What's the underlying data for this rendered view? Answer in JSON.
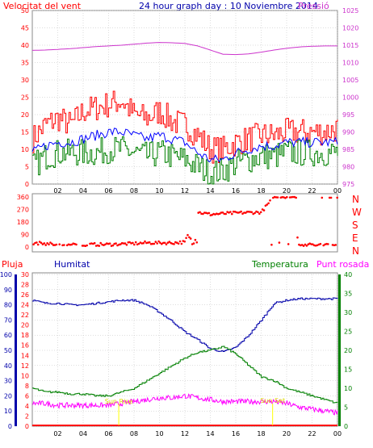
{
  "header": {
    "left_title": "Velocitat del vent",
    "center_title": "24 hour graph day : 10 Noviembre 2014",
    "right_title": "Pressió"
  },
  "colors": {
    "wind_gust": "#ff0000",
    "wind_avg_line": "#0000ff",
    "wind_green": "#008000",
    "pressure": "#cc33cc",
    "direction": "#ff0000",
    "rain": "#ff0000",
    "humidity": "#0000aa",
    "temperature": "#008000",
    "dew_point": "#ff00ff",
    "frame": "#888888",
    "grid": "#bbbbbb",
    "highlight": "#ffff00"
  },
  "compass": [
    "N",
    "W",
    "S",
    "E",
    "N"
  ],
  "bottom_labels": {
    "rain": "Pluja",
    "humidity": "Humitat",
    "temperature": "Temperatura",
    "dew_point": "Punt rosada",
    "sun_rise": "Sun Rise",
    "sun_set": "Sun Set"
  },
  "x_ticks": [
    "02",
    "04",
    "06",
    "08",
    "10",
    "12",
    "14",
    "16",
    "18",
    "20",
    "22",
    "00"
  ],
  "chart_data": [
    {
      "type": "line",
      "title": "24 hour graph day : 10 Noviembre 2014",
      "left_axis_label": "Velocitat del vent",
      "right_axis_label": "Pressió",
      "left_ylim": [
        0,
        50
      ],
      "left_ticks": [
        0,
        5,
        10,
        15,
        20,
        25,
        30,
        35,
        40,
        45,
        50
      ],
      "right_ylim": [
        975,
        1025
      ],
      "right_ticks": [
        975,
        980,
        985,
        990,
        995,
        1000,
        1005,
        1010,
        1015,
        1020,
        1025
      ],
      "x_hours": [
        0,
        1,
        2,
        3,
        4,
        5,
        6,
        7,
        8,
        9,
        10,
        11,
        12,
        13,
        14,
        15,
        16,
        17,
        18,
        19,
        20,
        21,
        22,
        23,
        24
      ],
      "series": [
        {
          "values": [
            13,
            17,
            19,
            17,
            21,
            22,
            23,
            24,
            20,
            19,
            21,
            18,
            17,
            14,
            10,
            10,
            12,
            13,
            14,
            14,
            15,
            15,
            15,
            15,
            16
          ]
        },
        {
          "values": [
            9,
            11,
            12,
            12,
            13,
            14,
            15,
            15,
            14,
            13,
            14,
            13,
            12,
            9,
            7,
            7,
            9,
            10,
            11,
            11,
            12,
            12,
            12,
            12,
            12
          ]
        },
        {
          "values": [
            5,
            8,
            9,
            9,
            9,
            9,
            10,
            10,
            9,
            8,
            9,
            8,
            7,
            5,
            3,
            4,
            6,
            7,
            8,
            8,
            9,
            9,
            9,
            9,
            9
          ]
        },
        {
          "values": [
            1013.5,
            1013.6,
            1013.8,
            1014.0,
            1014.3,
            1014.6,
            1014.8,
            1015.0,
            1015.3,
            1015.6,
            1015.8,
            1015.7,
            1015.5,
            1014.8,
            1013.6,
            1012.4,
            1012.3,
            1012.5,
            1013.0,
            1013.6,
            1014.1,
            1014.5,
            1014.7,
            1014.8,
            1014.8
          ]
        }
      ]
    },
    {
      "type": "scatter",
      "ylim": [
        0,
        360
      ],
      "y_ticks": [
        0,
        90,
        180,
        270,
        360
      ],
      "x_hours": [
        0,
        1,
        2,
        3,
        4,
        5,
        6,
        7,
        8,
        9,
        10,
        11,
        12,
        13,
        14,
        15,
        16,
        17,
        18,
        19,
        20,
        21,
        22,
        23,
        24
      ],
      "series": [
        {
          "values": [
            30,
            25,
            18,
            15,
            15,
            18,
            18,
            22,
            25,
            30,
            30,
            30,
            35,
            250,
            235,
            240,
            245,
            248,
            250,
            360,
            355,
            20,
            15,
            15,
            15
          ]
        }
      ]
    },
    {
      "type": "line",
      "x_hours": [
        0,
        1,
        2,
        3,
        4,
        5,
        6,
        7,
        8,
        9,
        10,
        11,
        12,
        13,
        14,
        15,
        16,
        17,
        18,
        19,
        20,
        21,
        22,
        23,
        24
      ],
      "left_axis_label": "Pluja",
      "humidity_ylim": [
        0,
        100
      ],
      "humidity_ticks": [
        0,
        10,
        20,
        30,
        40,
        50,
        60,
        70,
        80,
        90,
        100
      ],
      "rain_ylim": [
        0,
        30
      ],
      "rain_ticks": [
        0,
        2,
        4,
        6,
        8,
        10,
        12,
        14,
        16,
        18,
        20,
        22,
        24,
        26,
        28,
        30
      ],
      "temp_ylim": [
        0,
        40
      ],
      "temp_ticks": [
        0,
        5,
        10,
        15,
        20,
        25,
        30,
        35,
        40
      ],
      "series": [
        {
          "name": "Humitat",
          "values": [
            83,
            81,
            81,
            80,
            80,
            81,
            82,
            83,
            83,
            80,
            75,
            69,
            62,
            57,
            51,
            49,
            52,
            60,
            70,
            81,
            83,
            84,
            84,
            84,
            84
          ]
        },
        {
          "name": "Temperatura",
          "values": [
            10,
            9,
            9,
            8.5,
            8.5,
            8,
            8,
            9,
            10,
            12,
            14,
            16,
            18,
            19.5,
            20,
            21,
            19,
            16,
            13,
            12,
            10,
            9,
            8,
            7,
            6
          ]
        },
        {
          "name": "Punt rosada",
          "values": [
            6,
            6,
            5.5,
            5.5,
            5.5,
            5.5,
            5.5,
            6,
            6.5,
            7,
            7.5,
            7.5,
            8,
            7.5,
            7,
            6.5,
            6.5,
            6.5,
            6.5,
            6.5,
            6,
            5,
            4.5,
            4,
            3.5
          ]
        },
        {
          "name": "Pluja",
          "values": [
            0,
            0,
            0,
            0,
            0,
            0,
            0,
            0,
            0,
            0,
            0,
            0,
            0,
            0,
            0,
            0,
            0,
            0,
            0,
            0,
            0,
            0,
            0,
            0,
            0
          ]
        }
      ],
      "sun_rise_hour": 6.8,
      "sun_set_hour": 18.9
    }
  ]
}
